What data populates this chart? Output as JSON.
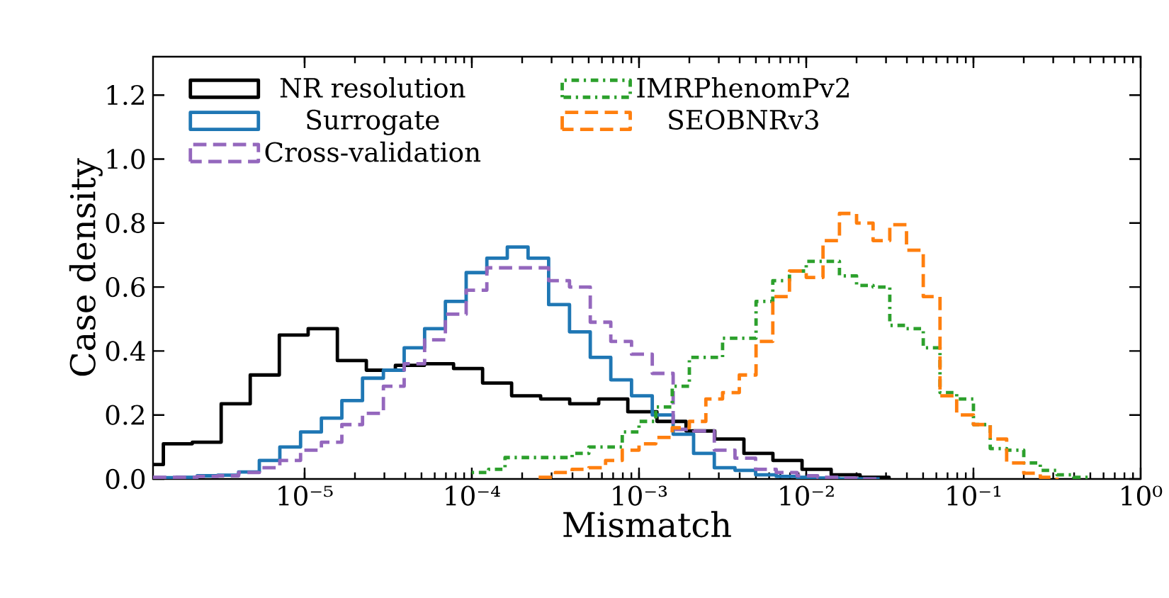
{
  "chart_data": {
    "type": "step",
    "xlabel": "Mismatch",
    "ylabel": "Case density",
    "log": "x",
    "legend": "top left",
    "grid": false,
    "xlim": [
      1.24e-06,
      1
    ],
    "ylim": [
      0,
      1.32
    ],
    "xticks": [
      {
        "value": 1e-05,
        "label": "10⁻⁵"
      },
      {
        "value": 0.0001,
        "label": "10⁻⁴"
      },
      {
        "value": 0.001,
        "label": "10⁻³"
      },
      {
        "value": 0.01,
        "label": "10⁻²"
      },
      {
        "value": 0.1,
        "label": "10⁻¹"
      },
      {
        "value": 1,
        "label": "10⁰"
      }
    ],
    "yticks": [
      {
        "value": 0,
        "label": "0.0"
      },
      {
        "value": 0.2,
        "label": "0.2"
      },
      {
        "value": 0.4,
        "label": "0.4"
      },
      {
        "value": 0.6,
        "label": "0.6"
      },
      {
        "value": 0.8,
        "label": "0.8"
      },
      {
        "value": 1.0,
        "label": "1.0"
      },
      {
        "value": 1.2,
        "label": "1.2"
      }
    ],
    "series": [
      {
        "name": "NR resolution",
        "color": "#000000",
        "line_style": "solid",
        "x": [
          1.24e-06,
          1.43e-06,
          2.13e-06,
          3.17e-06,
          4.73e-06,
          7.06e-06,
          1.05e-05,
          1.57e-05,
          2.34e-05,
          3.49e-05,
          5.21e-05,
          7.78e-05,
          0.000116,
          0.000173,
          0.000258,
          0.000385,
          0.000574,
          0.000857,
          0.00128,
          0.00191,
          0.00284,
          0.00424,
          0.00632,
          0.00944,
          0.0141,
          0.021,
          0.0313
        ],
        "values": [
          0.045,
          0.11,
          0.115,
          0.235,
          0.325,
          0.45,
          0.47,
          0.37,
          0.34,
          0.355,
          0.36,
          0.345,
          0.3,
          0.26,
          0.25,
          0.235,
          0.25,
          0.21,
          0.18,
          0.15,
          0.125,
          0.08,
          0.058,
          0.03,
          0.013,
          0.005,
          0
        ]
      },
      {
        "name": "Surrogate",
        "color": "#1f77b4",
        "line_style": "solid",
        "x": [
          1.24e-06,
          1.71e-06,
          2.28e-06,
          3.03e-06,
          4.03e-06,
          5.36e-06,
          7.11e-06,
          9.46e-06,
          1.26e-05,
          1.67e-05,
          2.22e-05,
          2.96e-05,
          3.94e-05,
          5.22e-05,
          6.95e-05,
          9.25e-05,
          0.000123,
          0.000163,
          0.000217,
          0.000288,
          0.000384,
          0.000511,
          0.000678,
          0.000902,
          0.0012,
          0.0016,
          0.00212,
          0.00282,
          0.00375,
          0.00498,
          0.00662,
          0.00881,
          0.0117,
          0.0156,
          0.0207,
          0.0275
        ],
        "values": [
          0.004,
          0.005,
          0.01,
          0.012,
          0.022,
          0.058,
          0.1,
          0.147,
          0.19,
          0.245,
          0.315,
          0.34,
          0.41,
          0.47,
          0.555,
          0.645,
          0.69,
          0.725,
          0.69,
          0.545,
          0.46,
          0.38,
          0.31,
          0.26,
          0.2,
          0.14,
          0.08,
          0.035,
          0.027,
          0.013,
          0.008,
          0.005,
          0.003,
          0,
          0,
          0
        ]
      },
      {
        "name": "Cross-validation",
        "color": "#9467bd",
        "line_style": "dashed",
        "x": [
          1.24e-06,
          1.71e-06,
          2.28e-06,
          3.03e-06,
          4.03e-06,
          5.36e-06,
          7.11e-06,
          9.46e-06,
          1.26e-05,
          1.67e-05,
          2.22e-05,
          2.96e-05,
          3.94e-05,
          5.22e-05,
          6.95e-05,
          9.25e-05,
          0.000123,
          0.000163,
          0.000217,
          0.000288,
          0.000384,
          0.000511,
          0.000678,
          0.000902,
          0.0012,
          0.0016,
          0.00212,
          0.00282,
          0.00375,
          0.00498,
          0.00662,
          0.00881,
          0.0117,
          0.0156,
          0.0207,
          0.0275
        ],
        "values": [
          0.005,
          0.005,
          0.008,
          0.01,
          0.02,
          0.035,
          0.058,
          0.09,
          0.115,
          0.17,
          0.205,
          0.29,
          0.36,
          0.435,
          0.515,
          0.59,
          0.66,
          0.66,
          0.66,
          0.62,
          0.6,
          0.49,
          0.43,
          0.39,
          0.33,
          0.155,
          0.15,
          0.09,
          0.065,
          0.03,
          0.02,
          0.01,
          0.005,
          0.003,
          0,
          0
        ]
      },
      {
        "name": "IMRPhenomPv2",
        "color": "#2ca02c",
        "line_style": "dotted",
        "x": [
          0.0001,
          0.000126,
          0.000158,
          0.0002,
          0.000251,
          0.000316,
          0.000398,
          0.000501,
          0.000631,
          0.000794,
          0.001,
          0.00126,
          0.00158,
          0.002,
          0.00251,
          0.00316,
          0.00398,
          0.00501,
          0.00631,
          0.00794,
          0.01,
          0.0126,
          0.0158,
          0.02,
          0.0251,
          0.0316,
          0.0398,
          0.0501,
          0.0631,
          0.0794,
          0.1,
          0.126,
          0.158,
          0.2,
          0.251,
          0.316,
          0.398,
          0.501
        ],
        "values": [
          0.02,
          0.03,
          0.067,
          0.067,
          0.067,
          0.067,
          0.08,
          0.1,
          0.1,
          0.147,
          0.18,
          0.225,
          0.29,
          0.38,
          0.38,
          0.44,
          0.44,
          0.555,
          0.62,
          0.65,
          0.68,
          0.68,
          0.635,
          0.605,
          0.6,
          0.48,
          0.47,
          0.41,
          0.27,
          0.25,
          0.17,
          0.095,
          0.09,
          0.05,
          0.027,
          0.013,
          0.005,
          0
        ]
      },
      {
        "name": "SEOBNRv3",
        "color": "#ff7f0e",
        "line_style": "dashed",
        "x": [
          0.000251,
          0.000316,
          0.000398,
          0.000501,
          0.000631,
          0.000794,
          0.001,
          0.00126,
          0.00158,
          0.002,
          0.00251,
          0.00316,
          0.00398,
          0.00501,
          0.00631,
          0.00794,
          0.01,
          0.0126,
          0.0158,
          0.02,
          0.0251,
          0.0316,
          0.0398,
          0.0501,
          0.0631,
          0.0794,
          0.1,
          0.126,
          0.158,
          0.2,
          0.251,
          0.316
        ],
        "values": [
          0.005,
          0.02,
          0.03,
          0.035,
          0.058,
          0.09,
          0.11,
          0.13,
          0.16,
          0.18,
          0.25,
          0.27,
          0.325,
          0.43,
          0.57,
          0.65,
          0.63,
          0.745,
          0.83,
          0.8,
          0.745,
          0.795,
          0.715,
          0.57,
          0.26,
          0.2,
          0.17,
          0.125,
          0.05,
          0.018,
          0.005,
          0
        ]
      }
    ]
  }
}
